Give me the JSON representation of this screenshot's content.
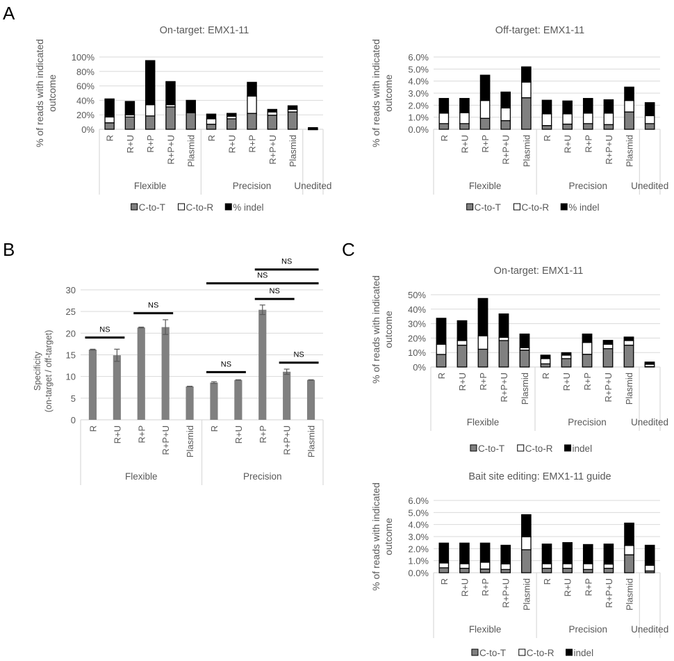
{
  "panel_labels": [
    "A",
    "B",
    "C"
  ],
  "legend_colors": {
    "C-to-T": "#808080",
    "C-to-R": "#ffffff",
    "indel": "#000000",
    "specificity": "#808080",
    "grid": "#d9d9d9",
    "text": "#595959"
  },
  "chart_data": [
    {
      "id": "A-on",
      "panel": "A",
      "type": "bar",
      "stacked": true,
      "title": "On-target: EMX1-11",
      "ylabel": "% of reads with indicated outcome",
      "ylim": [
        0,
        100
      ],
      "yticks": [
        "0%",
        "20%",
        "40%",
        "60%",
        "80%",
        "100%"
      ],
      "grid": true,
      "legend_position": "bottom",
      "groups": [
        {
          "label": "Flexible",
          "categories": [
            "R",
            "R+U",
            "R+P",
            "R+P+U",
            "Plasmid"
          ]
        },
        {
          "label": "Precision",
          "categories": [
            "R",
            "R+U",
            "R+P",
            "R+P+U",
            "Plasmid"
          ]
        },
        {
          "label": "Unedited",
          "categories": [
            ""
          ]
        }
      ],
      "series": [
        {
          "name": "C-to-T",
          "values": [
            9,
            17,
            18.5,
            31,
            23,
            7,
            14.5,
            22,
            19.5,
            24,
            0
          ]
        },
        {
          "name": "C-to-R",
          "values": [
            8,
            3,
            15.5,
            3,
            0.5,
            7.5,
            3.5,
            24,
            4.5,
            3.5,
            0.3
          ]
        },
        {
          "name": "% indel",
          "values": [
            25,
            18.5,
            61,
            32,
            16.5,
            6.5,
            4,
            19,
            3.5,
            5,
            2
          ]
        }
      ]
    },
    {
      "id": "A-off",
      "panel": "A",
      "type": "bar",
      "stacked": true,
      "title": "Off-target: EMX1-11",
      "ylabel": "% of reads with indicated outcome",
      "ylim": [
        0,
        6
      ],
      "yticks": [
        "0.0%",
        "1.0%",
        "2.0%",
        "3.0%",
        "4.0%",
        "5.0%",
        "6.0%"
      ],
      "grid": true,
      "legend_position": "bottom",
      "groups": [
        {
          "label": "Flexible",
          "categories": [
            "R",
            "R+U",
            "R+P",
            "R+P+U",
            "Plasmid"
          ]
        },
        {
          "label": "Precision",
          "categories": [
            "R",
            "R+U",
            "R+P",
            "R+P+U",
            "Plasmid"
          ]
        },
        {
          "label": "Unedited",
          "categories": [
            ""
          ]
        }
      ],
      "series": [
        {
          "name": "C-to-T",
          "values": [
            0.47,
            0.47,
            0.91,
            0.72,
            2.62,
            0.31,
            0.43,
            0.47,
            0.39,
            1.44,
            0.47
          ]
        },
        {
          "name": "C-to-R",
          "values": [
            0.87,
            0.91,
            1.48,
            1.05,
            1.3,
            0.97,
            0.85,
            0.87,
            0.95,
            0.95,
            0.66
          ]
        },
        {
          "name": "% indel",
          "values": [
            1.22,
            1.18,
            2.1,
            1.32,
            1.26,
            1.13,
            1.07,
            1.22,
            1.11,
            1.11,
            1.08
          ]
        }
      ]
    },
    {
      "id": "B",
      "panel": "B",
      "type": "bar",
      "stacked": false,
      "title": "",
      "ylabel": "Specificity",
      "ylabel2": "(on-target / off-target)",
      "ylim": [
        0,
        30
      ],
      "yticks": [
        "0",
        "5",
        "10",
        "15",
        "20",
        "25",
        "30"
      ],
      "grid": true,
      "groups": [
        {
          "label": "Flexible",
          "categories": [
            "R",
            "R+U",
            "R+P",
            "R+P+U",
            "Plasmid"
          ]
        },
        {
          "label": "Precision",
          "categories": [
            "R",
            "R+U",
            "R+P",
            "R+P+U",
            "Plasmid"
          ]
        }
      ],
      "series": [
        {
          "name": "Specificity",
          "values": [
            16.2,
            14.9,
            21.3,
            21.4,
            7.7,
            8.6,
            9.2,
            25.4,
            11.1,
            9.2
          ],
          "errors": [
            0.1,
            1.4,
            0.1,
            1.7,
            0.05,
            0.2,
            0.05,
            1.1,
            0.6,
            0.05
          ]
        }
      ],
      "annotations": [
        {
          "text": "NS",
          "from": 0,
          "to": 1,
          "y": 19
        },
        {
          "text": "NS",
          "from": 2,
          "to": 3,
          "y": 24.6
        },
        {
          "text": "NS",
          "from": 5,
          "to": 6,
          "y": 11
        },
        {
          "text": "NS",
          "from": 8,
          "to": 9,
          "y": 13.2
        },
        {
          "text": "NS",
          "from": 7,
          "to": 8,
          "y": 27.9
        },
        {
          "text": "NS",
          "from": 5,
          "to": 9,
          "y": 31.5
        },
        {
          "text": "NS",
          "from": 7,
          "to": 9,
          "y": 34.7
        }
      ]
    },
    {
      "id": "C-on",
      "panel": "C",
      "type": "bar",
      "stacked": true,
      "title": "On-target: EMX1-11",
      "ylabel": "% of reads with indicated outcome",
      "ylim": [
        0,
        50
      ],
      "yticks": [
        "0%",
        "10%",
        "20%",
        "30%",
        "40%",
        "50%"
      ],
      "grid": true,
      "legend_position": "bottom",
      "groups": [
        {
          "label": "Flexible",
          "categories": [
            "R",
            "R+U",
            "R+P",
            "R+P+U",
            "Plasmid"
          ]
        },
        {
          "label": "Precision",
          "categories": [
            "R",
            "R+U",
            "R+P",
            "R+P+U",
            "Plasmid"
          ]
        },
        {
          "label": "Unedited",
          "categories": [
            ""
          ]
        }
      ],
      "series": [
        {
          "name": "C-to-T",
          "values": [
            8.7,
            15.1,
            12.3,
            18.3,
            11.7,
            2.2,
            5.8,
            8.8,
            12.7,
            15.1,
            0.3
          ]
        },
        {
          "name": "C-to-R",
          "values": [
            7.0,
            3.2,
            9.3,
            2.2,
            1.6,
            3.6,
            2.4,
            8.2,
            3.0,
            3.2,
            1.6
          ]
        },
        {
          "name": "indel",
          "values": [
            18.0,
            13.7,
            25.8,
            16.2,
            9.5,
            2.4,
            1.7,
            5.8,
            2.7,
            2.4,
            1.5
          ]
        }
      ]
    },
    {
      "id": "C-bait",
      "panel": "C",
      "type": "bar",
      "stacked": true,
      "title": "Bait site editing: EMX1-11 guide",
      "ylabel": "% of reads with indicated outcome",
      "ylim": [
        0,
        6
      ],
      "yticks": [
        "0.0%",
        "1.0%",
        "2.0%",
        "3.0%",
        "4.0%",
        "5.0%",
        "6.0%"
      ],
      "grid": true,
      "legend_position": "bottom",
      "groups": [
        {
          "label": "Flexible",
          "categories": [
            "R",
            "R+U",
            "R+P",
            "R+P+U",
            "Plasmid"
          ]
        },
        {
          "label": "Precision",
          "categories": [
            "R",
            "R+U",
            "R+P",
            "R+P+U",
            "Plasmid"
          ]
        },
        {
          "label": "Unedited",
          "categories": [
            ""
          ]
        }
      ],
      "series": [
        {
          "name": "C-to-T",
          "values": [
            0.41,
            0.37,
            0.31,
            0.27,
            1.91,
            0.37,
            0.37,
            0.27,
            0.37,
            1.49,
            0.15
          ]
        },
        {
          "name": "C-to-R",
          "values": [
            0.4,
            0.38,
            0.56,
            0.46,
            1.07,
            0.38,
            0.38,
            0.48,
            0.35,
            0.77,
            0.47
          ]
        },
        {
          "name": "indel",
          "values": [
            1.65,
            1.71,
            1.59,
            1.55,
            1.84,
            1.63,
            1.75,
            1.59,
            1.66,
            1.86,
            1.66
          ]
        }
      ]
    }
  ]
}
